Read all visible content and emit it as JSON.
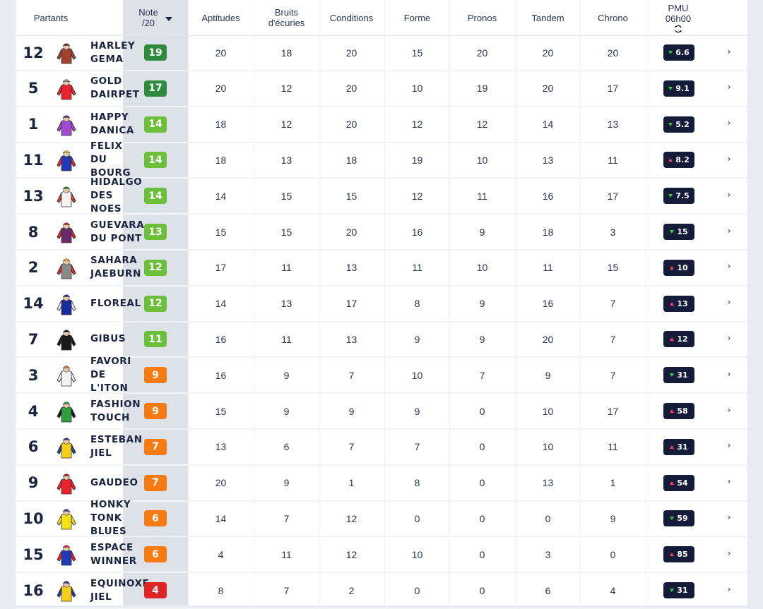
{
  "header": {
    "partants": "Partants",
    "note_line1": "Note",
    "note_line2": "/20",
    "columns": [
      {
        "line1": "Aptitudes",
        "line2": ""
      },
      {
        "line1": "Bruits",
        "line2": "d'écuries"
      },
      {
        "line1": "Conditions",
        "line2": ""
      },
      {
        "line1": "Forme",
        "line2": ""
      },
      {
        "line1": "Pronos",
        "line2": ""
      },
      {
        "line1": "Tandem",
        "line2": ""
      },
      {
        "line1": "Chrono",
        "line2": ""
      }
    ],
    "pmu_line1": "PMU",
    "pmu_line2": "06h00",
    "refresh_icon": "refresh-icon"
  },
  "colors": {
    "note_dark_green": "#2e8b3e",
    "note_green": "#6cbf3a",
    "note_orange": "#f57a12",
    "note_red": "#e02424",
    "odds_bg": "#141c3a",
    "trend_down": "#2ecc40",
    "trend_up": "#ff3b5c"
  },
  "rows": [
    {
      "num": "12",
      "name": "HARLEY\nGEMA",
      "note": "19",
      "note_color": "#2e8b3e",
      "values": [
        "20",
        "18",
        "20",
        "15",
        "20",
        "20",
        "20"
      ],
      "odds": "6.6",
      "trend": "down",
      "silk": {
        "body": "#a3432e",
        "sleeve": "#a3432e",
        "cap": "#7a2e22"
      }
    },
    {
      "num": "5",
      "name": "GOLD\nDAIRPET",
      "note": "17",
      "note_color": "#2e8b3e",
      "values": [
        "20",
        "12",
        "20",
        "10",
        "19",
        "20",
        "17"
      ],
      "odds": "9.1",
      "trend": "down",
      "silk": {
        "body": "#e8232a",
        "sleeve": "#e8232a",
        "cap": "#9a9a9a"
      }
    },
    {
      "num": "1",
      "name": "HAPPY\nDANICA",
      "note": "14",
      "note_color": "#6cbf3a",
      "values": [
        "18",
        "12",
        "20",
        "12",
        "12",
        "14",
        "13"
      ],
      "odds": "5.2",
      "trend": "down",
      "silk": {
        "body": "#a24ad1",
        "sleeve": "#a24ad1",
        "cap": "#7b2fa8"
      }
    },
    {
      "num": "11",
      "name": "FELIX\nDU\nBOURG",
      "note": "14",
      "note_color": "#6cbf3a",
      "values": [
        "18",
        "13",
        "18",
        "19",
        "10",
        "13",
        "11"
      ],
      "odds": "8.2",
      "trend": "up",
      "silk": {
        "body": "#2339b5",
        "sleeve": "#e8232a",
        "cap": "#f4d01a"
      }
    },
    {
      "num": "13",
      "name": "HIDALGO\nDES\nNOES",
      "note": "14",
      "note_color": "#6cbf3a",
      "values": [
        "14",
        "15",
        "15",
        "12",
        "11",
        "16",
        "17"
      ],
      "odds": "7.5",
      "trend": "down",
      "silk": {
        "body": "#f2f2f2",
        "sleeve": "#d9352a",
        "cap": "#2e9e3e"
      }
    },
    {
      "num": "8",
      "name": "GUEVARA\nDU PONT",
      "note": "13",
      "note_color": "#6cbf3a",
      "values": [
        "15",
        "15",
        "20",
        "16",
        "9",
        "18",
        "3"
      ],
      "odds": "15",
      "trend": "down",
      "silk": {
        "body": "#6a2a6a",
        "sleeve": "#d8242a",
        "cap": "#d8242a"
      }
    },
    {
      "num": "2",
      "name": "SAHARA\nJAEBURN",
      "note": "12",
      "note_color": "#6cbf3a",
      "values": [
        "17",
        "11",
        "13",
        "11",
        "10",
        "11",
        "15"
      ],
      "odds": "10",
      "trend": "up",
      "silk": {
        "body": "#8a8a8a",
        "sleeve": "#e8232a",
        "cap": "#f4d01a"
      }
    },
    {
      "num": "14",
      "name": "FLOREAL",
      "note": "12",
      "note_color": "#6cbf3a",
      "values": [
        "14",
        "13",
        "17",
        "8",
        "9",
        "16",
        "7"
      ],
      "odds": "13",
      "trend": "up",
      "silk": {
        "body": "#1a2c9a",
        "sleeve": "#f2f2f2",
        "cap": "#1a2c9a"
      }
    },
    {
      "num": "7",
      "name": "GIBUS",
      "note": "11",
      "note_color": "#6cbf3a",
      "values": [
        "16",
        "11",
        "13",
        "9",
        "9",
        "20",
        "7"
      ],
      "odds": "12",
      "trend": "up",
      "silk": {
        "body": "#1a1a1a",
        "sleeve": "#1a1a1a",
        "cap": "#1a1a1a"
      }
    },
    {
      "num": "3",
      "name": "FAVORI\nDE\nL'ITON",
      "note": "9",
      "note_color": "#f57a12",
      "values": [
        "16",
        "9",
        "7",
        "10",
        "7",
        "9",
        "7"
      ],
      "odds": "31",
      "trend": "down",
      "silk": {
        "body": "#f2f2f2",
        "sleeve": "#f2f2f2",
        "cap": "#e8732a"
      }
    },
    {
      "num": "4",
      "name": "FASHION\nTOUCH",
      "note": "9",
      "note_color": "#f57a12",
      "values": [
        "15",
        "9",
        "9",
        "9",
        "0",
        "10",
        "17"
      ],
      "odds": "58",
      "trend": "up",
      "silk": {
        "body": "#2e9e3e",
        "sleeve": "#1a1a1a",
        "cap": "#2e9e3e"
      }
    },
    {
      "num": "6",
      "name": "ESTEBAN\nJIEL",
      "note": "7",
      "note_color": "#f57a12",
      "values": [
        "13",
        "6",
        "7",
        "7",
        "0",
        "10",
        "11"
      ],
      "odds": "31",
      "trend": "up",
      "silk": {
        "body": "#f4d01a",
        "sleeve": "#2a3a9a",
        "cap": "#2a3a9a"
      }
    },
    {
      "num": "9",
      "name": "GAUDEO",
      "note": "7",
      "note_color": "#f57a12",
      "values": [
        "20",
        "9",
        "1",
        "8",
        "0",
        "13",
        "1"
      ],
      "odds": "54",
      "trend": "up",
      "silk": {
        "body": "#e8232a",
        "sleeve": "#e8232a",
        "cap": "#b01a24"
      }
    },
    {
      "num": "10",
      "name": "HONKY\nTONK\nBLUES",
      "note": "6",
      "note_color": "#f57a12",
      "values": [
        "14",
        "7",
        "12",
        "0",
        "0",
        "0",
        "9"
      ],
      "odds": "59",
      "trend": "down",
      "silk": {
        "body": "#f4e21a",
        "sleeve": "#f4e21a",
        "cap": "#2a3ab5"
      }
    },
    {
      "num": "15",
      "name": "ESPACE\nWINNER",
      "note": "6",
      "note_color": "#f57a12",
      "values": [
        "4",
        "11",
        "12",
        "10",
        "0",
        "3",
        "0"
      ],
      "odds": "85",
      "trend": "up",
      "silk": {
        "body": "#2339b5",
        "sleeve": "#e8232a",
        "cap": "#e8232a"
      }
    },
    {
      "num": "16",
      "name": "EQUINOXE\nJIEL",
      "note": "4",
      "note_color": "#e02424",
      "values": [
        "8",
        "7",
        "2",
        "0",
        "0",
        "6",
        "4"
      ],
      "odds": "31",
      "trend": "down",
      "silk": {
        "body": "#f4d01a",
        "sleeve": "#2a3a9a",
        "cap": "#2a3a9a"
      }
    }
  ]
}
